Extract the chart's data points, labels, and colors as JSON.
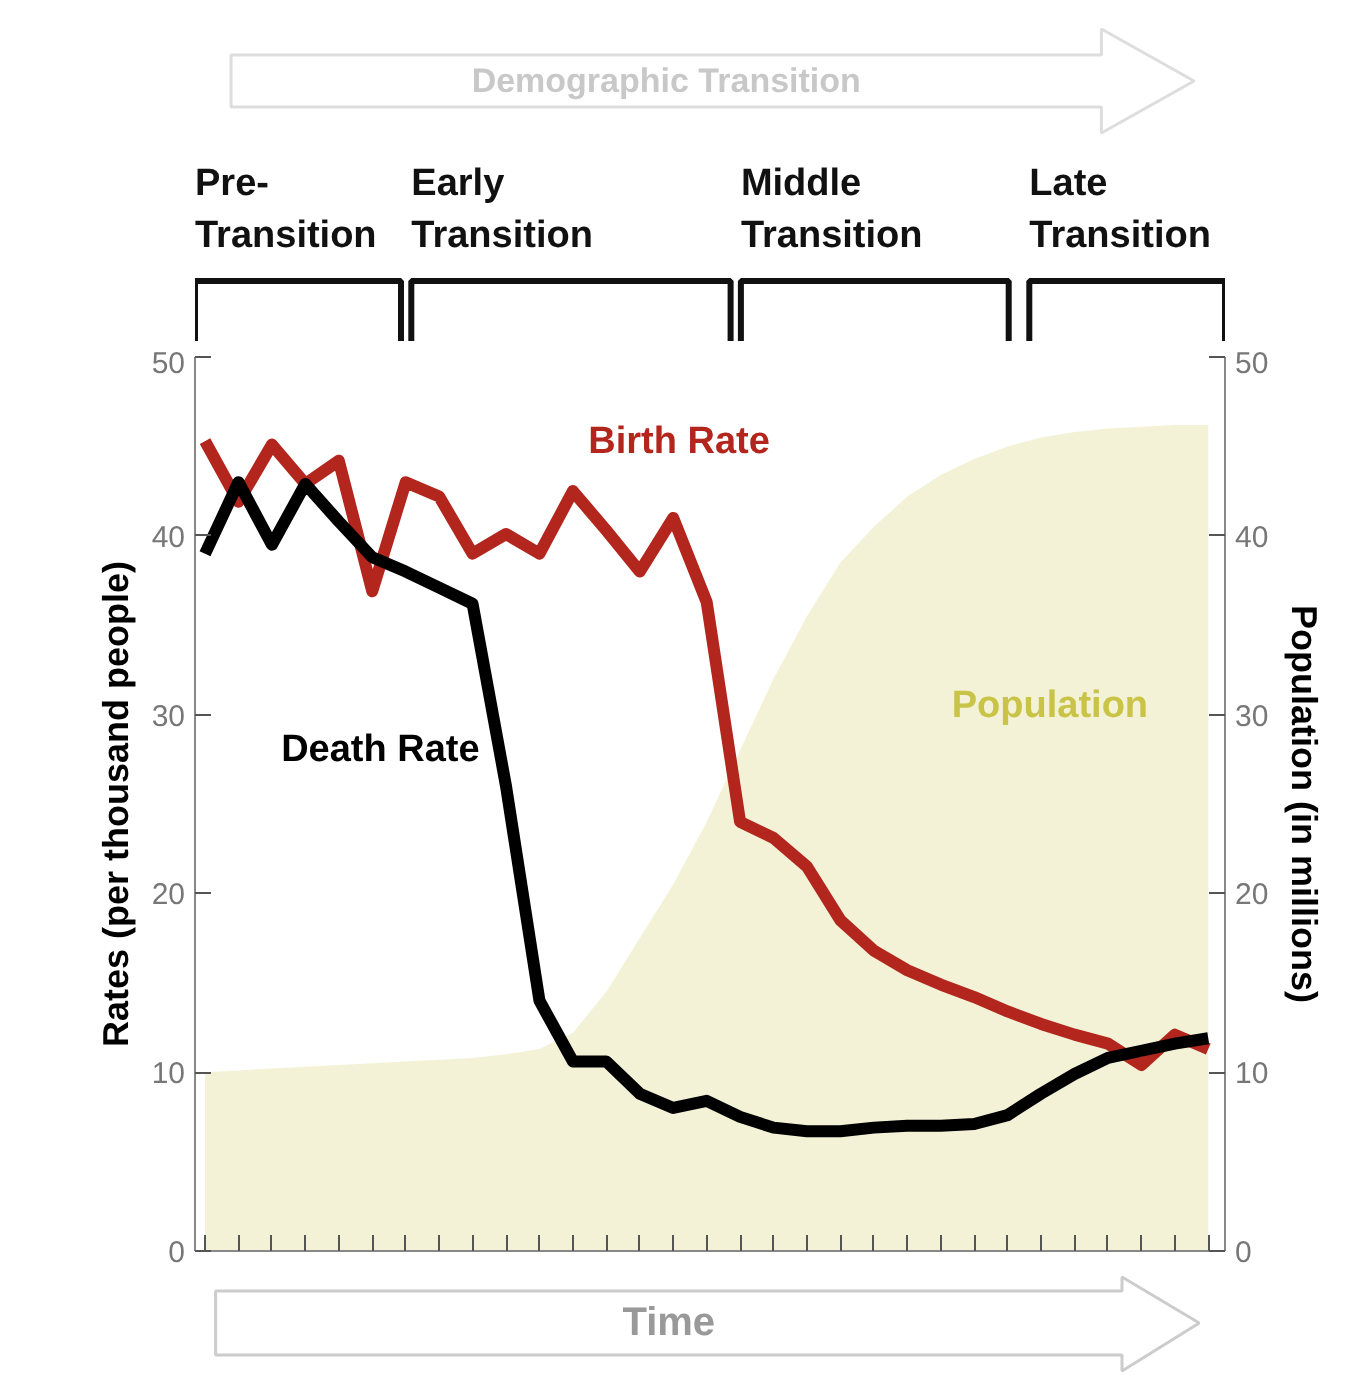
{
  "chart_data": {
    "type": "line",
    "title": "Demographic Transition",
    "xlabel": "Time",
    "ylabel": "Rates (per thousand people)",
    "y2label": "Population (in millions)",
    "categories": [
      null,
      null,
      null,
      null,
      null,
      null,
      null,
      null,
      null,
      null,
      null,
      null,
      null,
      null,
      null,
      null,
      null,
      null,
      null,
      null,
      null,
      null,
      null,
      null,
      null,
      null,
      null,
      null,
      null,
      null,
      null
    ],
    "ylim": [
      0,
      50
    ],
    "yticks": [
      0,
      10,
      20,
      30,
      40,
      50
    ],
    "y2lim": [
      0,
      50
    ],
    "y2ticks": [
      0,
      10,
      20,
      30,
      40,
      50
    ],
    "series": [
      {
        "name": "Population",
        "type": "area",
        "axis": "y2",
        "color": "#c9c347",
        "values": [
          10,
          10.1,
          10.2,
          10.3,
          10.4,
          10.5,
          10.6,
          10.7,
          10.8,
          11,
          11.3,
          12.2,
          14.5,
          17.5,
          20.5,
          24,
          28,
          32,
          35.5,
          38.5,
          40.5,
          42.2,
          43.4,
          44.3,
          45,
          45.5,
          45.8,
          46,
          46.1,
          46.2,
          46.2
        ]
      },
      {
        "name": "Birth Rate",
        "color": "#b3261e",
        "values": [
          45.3,
          41.9,
          45.1,
          42.9,
          44.2,
          36.9,
          43,
          42.2,
          39,
          40.1,
          39,
          42.5,
          40.3,
          38,
          41,
          36.3,
          24,
          23.1,
          21.5,
          18.5,
          16.8,
          15.7,
          14.9,
          14.2,
          13.4,
          12.7,
          12.1,
          11.6,
          10.4,
          12.1,
          11.3
        ]
      },
      {
        "name": "Death Rate",
        "color": "#000000",
        "values": [
          39,
          43,
          39.5,
          42.9,
          40.8,
          38.8,
          38,
          37.1,
          36.2,
          26,
          14,
          10.6,
          10.6,
          8.8,
          8,
          8.4,
          7.5,
          6.9,
          6.7,
          6.7,
          6.9,
          7,
          7,
          7.1,
          7.6,
          8.8,
          9.9,
          10.8,
          11.2,
          11.6,
          11.9
        ]
      }
    ],
    "annotations": [
      "Pre-\nTransition",
      "Early\nTransition",
      "Middle\nTransition",
      "Late\nTransition"
    ],
    "grid": false,
    "line_style": "solid",
    "marker": "none"
  }
}
